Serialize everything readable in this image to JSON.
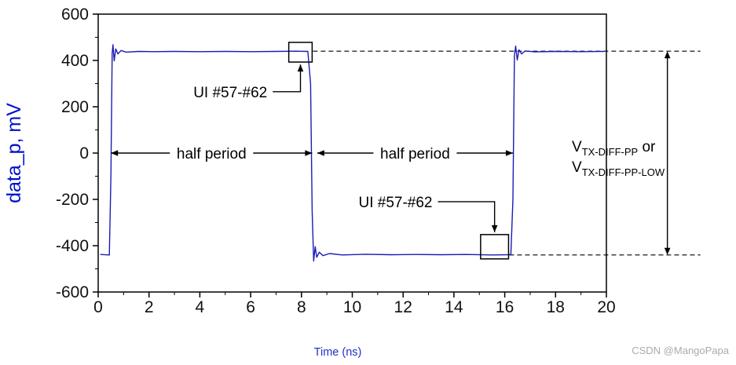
{
  "watermark": "CSDN @MangoPapa",
  "chart_data": {
    "type": "line",
    "title": "",
    "xlabel": "Time (ns)",
    "ylabel": "data_p, mV",
    "xlim": [
      0,
      20
    ],
    "ylim": [
      -600,
      600
    ],
    "grid": false,
    "x_major_ticks": [
      0,
      2,
      4,
      6,
      8,
      10,
      12,
      14,
      16,
      18,
      20
    ],
    "x_minor_ticks": [
      1,
      3,
      5,
      7,
      9,
      11,
      13,
      15,
      17,
      19
    ],
    "y_major_ticks": [
      600,
      400,
      200,
      0,
      -200,
      -400,
      -600
    ],
    "y_minor_ticks": [
      500,
      300,
      100,
      -100,
      -300,
      -500
    ],
    "series": [
      {
        "name": "data_p",
        "color": "#1c1cb4",
        "high_level_mV": 440,
        "low_level_mV": -440,
        "points": [
          [
            0.08,
            -438
          ],
          [
            0.44,
            -440
          ],
          [
            0.5,
            -100
          ],
          [
            0.55,
            430
          ],
          [
            0.58,
            468
          ],
          [
            0.63,
            398
          ],
          [
            0.69,
            450
          ],
          [
            0.78,
            428
          ],
          [
            0.9,
            443
          ],
          [
            1.1,
            436
          ],
          [
            1.6,
            439
          ],
          [
            2.2,
            438
          ],
          [
            3.0,
            439
          ],
          [
            4.0,
            438
          ],
          [
            5.0,
            439
          ],
          [
            6.0,
            438
          ],
          [
            7.0,
            439
          ],
          [
            7.8,
            440
          ],
          [
            8.25,
            439
          ],
          [
            8.36,
            300
          ],
          [
            8.42,
            -250
          ],
          [
            8.48,
            -466
          ],
          [
            8.54,
            -404
          ],
          [
            8.6,
            -450
          ],
          [
            8.7,
            -428
          ],
          [
            8.85,
            -443
          ],
          [
            9.1,
            -434
          ],
          [
            9.6,
            -440
          ],
          [
            10.5,
            -437
          ],
          [
            11.5,
            -439
          ],
          [
            12.5,
            -438
          ],
          [
            13.5,
            -439
          ],
          [
            14.5,
            -438
          ],
          [
            15.5,
            -440
          ],
          [
            16.1,
            -439
          ],
          [
            16.24,
            -438
          ],
          [
            16.32,
            -200
          ],
          [
            16.38,
            420
          ],
          [
            16.43,
            462
          ],
          [
            16.49,
            402
          ],
          [
            16.56,
            446
          ],
          [
            16.66,
            428
          ],
          [
            16.8,
            441
          ],
          [
            17.2,
            437
          ],
          [
            18.0,
            439
          ],
          [
            19.0,
            438
          ],
          [
            19.92,
            439
          ]
        ]
      }
    ],
    "annotations": {
      "ui_markers": [
        {
          "label": "UI #57-#62",
          "box_t": [
            7.5,
            8.42
          ],
          "box_mV": [
            393,
            478
          ],
          "label_t": 5.2,
          "label_mV": 265,
          "arrow_dir": "up"
        },
        {
          "label": "UI #57-#62",
          "box_t": [
            15.05,
            16.15
          ],
          "box_mV": [
            -457,
            -352
          ],
          "label_t": 11.7,
          "label_mV": -210,
          "arrow_dir": "down"
        }
      ],
      "half_period_arrows": [
        {
          "label": "half period",
          "t_start": 0.5,
          "t_end": 8.42,
          "mV": 0
        },
        {
          "label": "half period",
          "t_start": 8.62,
          "t_end": 16.32,
          "mV": 0
        }
      ],
      "level_dashed_lines": [
        {
          "mV": 440,
          "t_start": 8.45,
          "t_end": 23.7
        },
        {
          "mV": -440,
          "t_start": 16.18,
          "t_end": 23.7
        }
      ],
      "vpp_arrow": {
        "t": 22.4,
        "mV_top": 440,
        "mV_bottom": -440,
        "label_lines": [
          {
            "main": "V",
            "sub": "TX-DIFF-PP",
            "after": " or"
          },
          {
            "main": "V",
            "sub": "TX-DIFF-PP-LOW",
            "after": ""
          }
        ]
      }
    }
  }
}
